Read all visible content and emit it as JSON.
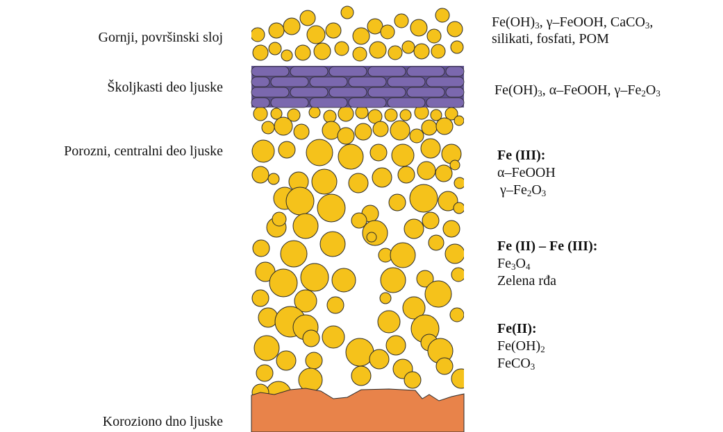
{
  "left_labels": {
    "surface": "Gornji, površinski sloj",
    "shell": "Školjkasti deo ljuske",
    "porous": "Porozni, centralni deo ljuske",
    "bottom": "Koroziono dno ljuske"
  },
  "right": {
    "surface": {
      "p1": "Fe(OH)",
      "s1": "3",
      "p2": ", γ–FeOOH, CaCO",
      "s2": "3",
      "p3": ",",
      "line2": "silikati, fosfati, POM"
    },
    "shell": {
      "p1": "Fe(OH)",
      "s1": "3",
      "p2": ", α–FeOOH, γ–Fe",
      "s2": "2",
      "p3": "O",
      "s3": "3"
    },
    "fe3": {
      "heading": "Fe (III):",
      "item1": "α–FeOOH",
      "item2_a": "γ–Fe",
      "item2_s1": "2",
      "item2_b": "O",
      "item2_s2": "3"
    },
    "fe23": {
      "heading": "Fe (II) – Fe (III):",
      "item1_a": "Fe",
      "item1_s1": "3",
      "item1_b": "O",
      "item1_s2": "4",
      "item2": "Zelena rđa"
    },
    "fe2": {
      "heading": "Fe(II):",
      "item1_a": "Fe(OH)",
      "item1_s1": "2",
      "item2_a": "FeCO",
      "item2_s1": "3"
    }
  },
  "colors": {
    "particle": "#F5C21B",
    "particle_stroke": "#2a2a2a",
    "brick": "#7B68AE",
    "brick_stroke": "#2a2a2a",
    "base": "#E8834A"
  }
}
